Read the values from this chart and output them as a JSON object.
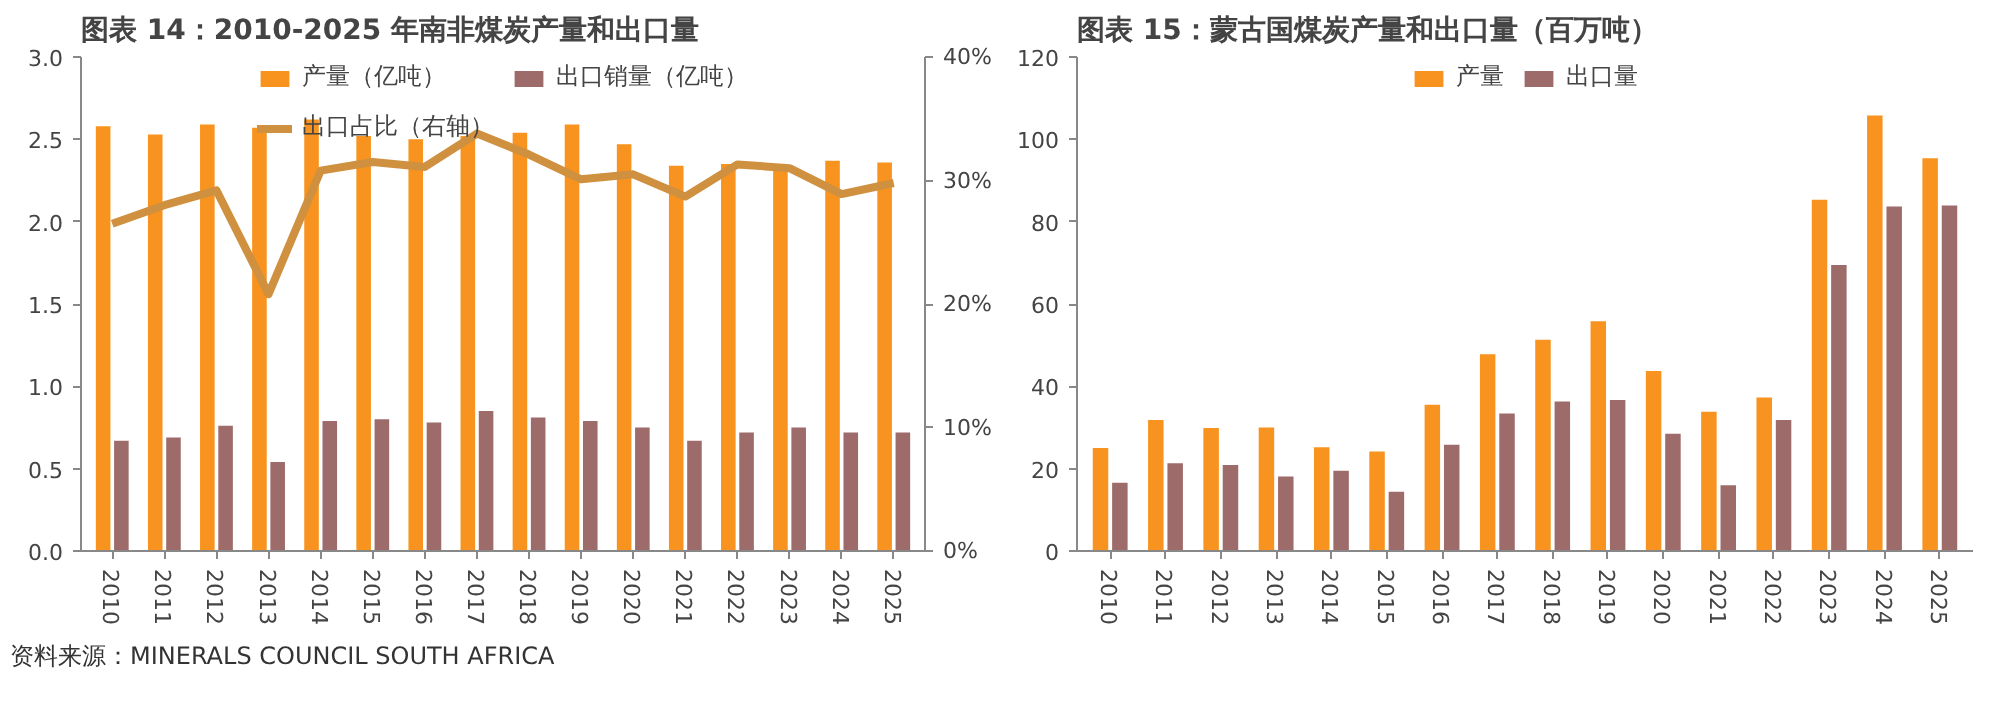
{
  "chart_data": [
    {
      "type": "bar",
      "title": "图表 14：2010-2025 年南非煤炭产量和出口量",
      "categories": [
        "2010",
        "2011",
        "2012",
        "2013",
        "2014",
        "2015",
        "2016",
        "2017",
        "2018",
        "2019",
        "2020",
        "2021",
        "2022",
        "2023",
        "2024",
        "2025"
      ],
      "series": [
        {
          "name": "产量（亿吨）",
          "color": "#f7931e",
          "values": [
            2.58,
            2.53,
            2.59,
            2.57,
            2.62,
            2.52,
            2.5,
            2.52,
            2.54,
            2.59,
            2.47,
            2.34,
            2.35,
            2.33,
            2.37,
            2.36
          ]
        },
        {
          "name": "出口销量（亿吨）",
          "color": "#9e6b6b",
          "values": [
            0.67,
            0.69,
            0.76,
            0.54,
            0.79,
            0.8,
            0.78,
            0.85,
            0.81,
            0.79,
            0.75,
            0.67,
            0.72,
            0.75,
            0.72,
            0.72
          ]
        },
        {
          "name": "出口占比（右轴）",
          "type": "line",
          "axis": "y2",
          "color": "#cf9040",
          "marker": "none",
          "line_style": "solid",
          "values": [
            26.5,
            28.0,
            29.2,
            20.8,
            30.8,
            31.5,
            31.1,
            33.8,
            32.1,
            30.1,
            30.5,
            28.7,
            31.3,
            31.0,
            28.9,
            29.8
          ]
        }
      ],
      "ylim": [
        0,
        3
      ],
      "yticks": [
        {
          "value": 0,
          "label": "0.0"
        },
        {
          "value": 0.5,
          "label": "0.5"
        },
        {
          "value": 1,
          "label": "1.0"
        },
        {
          "value": 1.5,
          "label": "1.5"
        },
        {
          "value": 2,
          "label": "2.0"
        },
        {
          "value": 2.5,
          "label": "2.5"
        },
        {
          "value": 3,
          "label": "3.0"
        }
      ],
      "y2lim": [
        0,
        40
      ],
      "y2ticks": [
        {
          "value": 0,
          "label": "0%"
        },
        {
          "value": 10,
          "label": "10%"
        },
        {
          "value": 20,
          "label": "20%"
        },
        {
          "value": 30,
          "label": "30%"
        },
        {
          "value": 40,
          "label": "40%"
        }
      ],
      "grid": false,
      "legend": "top",
      "annotations": [
        "资料来源：MINERALS COUNCIL SOUTH AFRICA"
      ]
    },
    {
      "type": "bar",
      "title": "图表 15：蒙古国煤炭产量和出口量（百万吨）",
      "categories": [
        "2010",
        "2011",
        "2012",
        "2013",
        "2014",
        "2015",
        "2016",
        "2017",
        "2018",
        "2019",
        "2020",
        "2021",
        "2022",
        "2023",
        "2024",
        "2025"
      ],
      "series": [
        {
          "name": "产量",
          "color": "#f7931e",
          "values": [
            25.0,
            31.8,
            29.9,
            30.0,
            25.2,
            24.2,
            35.5,
            47.8,
            51.3,
            55.8,
            43.7,
            33.8,
            37.3,
            85.3,
            105.8,
            95.4
          ]
        },
        {
          "name": "出口量",
          "color": "#9e6b6b",
          "values": [
            16.6,
            21.3,
            20.9,
            18.1,
            19.5,
            14.4,
            25.8,
            33.4,
            36.3,
            36.7,
            28.5,
            16.0,
            31.8,
            69.5,
            83.7,
            83.9
          ]
        }
      ],
      "ylim": [
        0,
        120
      ],
      "yticks": [
        0,
        20,
        40,
        60,
        80,
        100,
        120
      ],
      "grid": false,
      "legend": "top"
    }
  ]
}
